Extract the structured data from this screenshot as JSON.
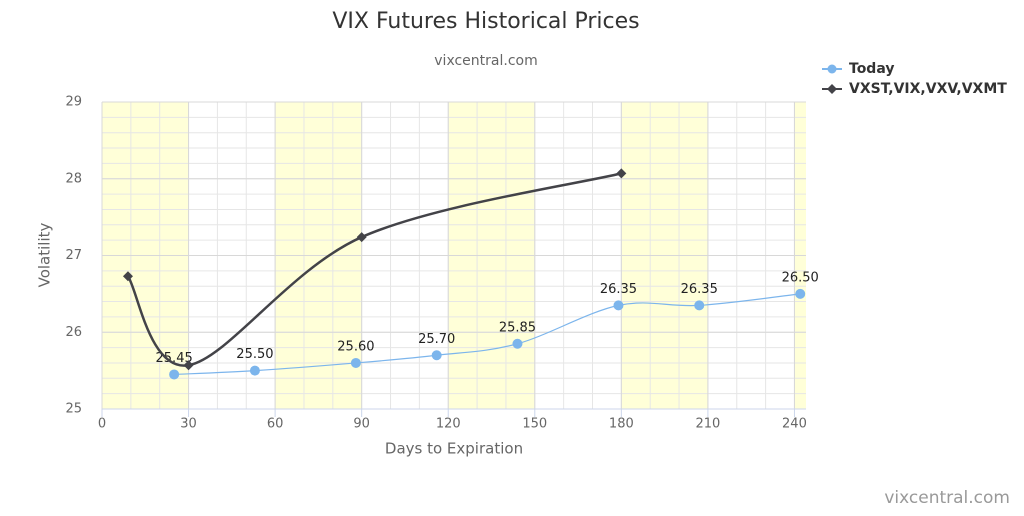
{
  "chart_data": {
    "type": "line",
    "title": "VIX Futures Historical Prices",
    "subtitle": "vixcentral.com",
    "credits": "vixcentral.com",
    "x_label": "Days to Expiration",
    "y_label": "Volatility",
    "xlim": [
      0,
      244
    ],
    "xticks": [
      0,
      30,
      60,
      90,
      120,
      150,
      180,
      210,
      240
    ],
    "ylim": [
      25,
      29
    ],
    "yticks": [
      25,
      26,
      27,
      28,
      29
    ],
    "minor_x_interval": 10,
    "minor_y_interval": 0.2,
    "grid": true,
    "legend": "top-right",
    "plot_bands": [
      [
        0,
        30
      ],
      [
        60,
        90
      ],
      [
        120,
        150
      ],
      [
        180,
        210
      ],
      [
        240,
        270
      ]
    ],
    "plot_band_color": "#ffffd8",
    "series": [
      {
        "name": "Today",
        "color": "#7cb5ec",
        "marker": "circle",
        "x": [
          25,
          53,
          88,
          116,
          144,
          179,
          207,
          242
        ],
        "values": [
          25.45,
          25.5,
          25.6,
          25.7,
          25.85,
          26.35,
          26.35,
          26.5
        ],
        "value_labels": [
          "25.45",
          "25.50",
          "25.60",
          "25.70",
          "25.85",
          "26.35",
          "26.35",
          "26.50"
        ]
      },
      {
        "name": "VXST,VIX,VXV,VXMT",
        "color": "#434348",
        "marker": "diamond",
        "x": [
          9,
          30,
          90,
          180
        ],
        "values": [
          26.73,
          25.57,
          27.24,
          28.07
        ]
      }
    ]
  }
}
